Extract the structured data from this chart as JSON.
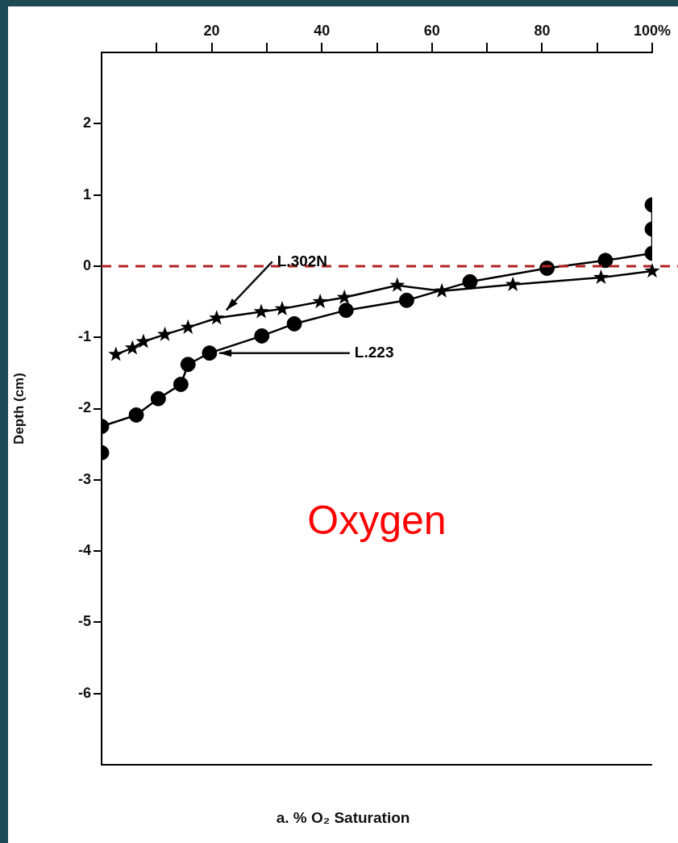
{
  "chart_data": {
    "type": "line",
    "xlabel": "a. % O₂ Saturation",
    "ylabel": "Depth (cm)",
    "xlim": [
      0,
      100
    ],
    "ylim": [
      -7,
      3
    ],
    "xticks": [
      {
        "value": 10,
        "label": null
      },
      20,
      {
        "value": 30,
        "label": null
      },
      40,
      {
        "value": 50,
        "label": null
      },
      60,
      {
        "value": 70,
        "label": null
      },
      80,
      {
        "value": 90,
        "label": null
      },
      {
        "value": 100,
        "label": "100%"
      }
    ],
    "yticks": [
      -6,
      -5,
      -4,
      -3,
      -2,
      -1,
      0,
      1,
      2
    ],
    "grid": false,
    "legend": false,
    "series": [
      {
        "name": "L.302N",
        "color": "#000000",
        "marker": "star",
        "x": [
          2.6,
          5.6,
          7.6,
          11.5,
          15.7,
          20.9,
          29,
          32.8,
          39.7,
          44.1,
          53.7,
          61.8,
          74.7,
          90.7,
          100
        ],
        "values": [
          -1.24,
          -1.15,
          -1.06,
          -0.96,
          -0.86,
          -0.73,
          -0.64,
          -0.6,
          -0.5,
          -0.44,
          -0.27,
          -0.35,
          -0.26,
          -0.16,
          -0.07
        ]
      },
      {
        "name": "L.223",
        "color": "#000000",
        "marker": "circle",
        "x": [
          0,
          0,
          6.3,
          10.3,
          14.4,
          15.7,
          19.6,
          29.1,
          35,
          44.4,
          55.4,
          66.9,
          80.9,
          91.5,
          100,
          100,
          100
        ],
        "values": [
          -2.62,
          -2.25,
          -2.09,
          -1.86,
          -1.66,
          -1.38,
          -1.22,
          -0.98,
          -0.81,
          -0.62,
          -0.48,
          -0.22,
          -0.03,
          0.08,
          0.18,
          0.52,
          0.86
        ]
      }
    ],
    "ref_lines": [
      {
        "axis": "y",
        "value": 0,
        "color": "#b22222",
        "line_style": "dashed"
      }
    ],
    "annotations": [
      "Oxygen"
    ]
  }
}
